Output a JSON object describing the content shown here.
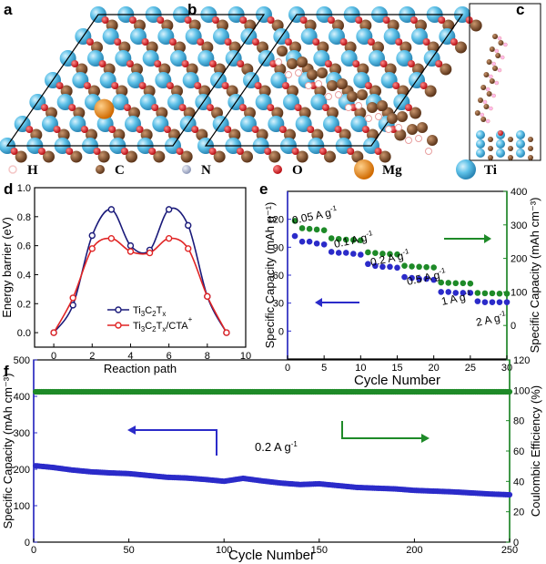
{
  "panels": {
    "a": "a",
    "b": "b",
    "c": "c",
    "d": "d",
    "e": "e",
    "f": "f"
  },
  "legend_atoms": [
    {
      "symbol": "H",
      "color": "#f4c6c6",
      "style": "ring"
    },
    {
      "symbol": "C",
      "color": "#7a4a2a",
      "style": "ball"
    },
    {
      "symbol": "N",
      "color": "#b8c0d8",
      "style": "ball"
    },
    {
      "symbol": "O",
      "color": "#e0262a",
      "style": "ball"
    },
    {
      "symbol": "Mg",
      "color": "#f08a1c",
      "style": "big"
    },
    {
      "symbol": "Ti",
      "color": "#5ec1e8",
      "style": "big"
    }
  ],
  "chart_data": [
    {
      "panel": "d",
      "type": "line",
      "xlabel": "Reaction path",
      "ylabel": "Energy barrier (eV)",
      "xlim": [
        -1,
        10
      ],
      "ylim": [
        -0.1,
        1.0
      ],
      "xticks": [
        0,
        2,
        4,
        6,
        8,
        10
      ],
      "yticks": [
        0.0,
        0.2,
        0.4,
        0.6,
        0.8,
        1.0
      ],
      "x": [
        0,
        1,
        2,
        3,
        4,
        5,
        6,
        7,
        8,
        9
      ],
      "series": [
        {
          "name": "Ti3C2Tx",
          "color": "#1a1a7a",
          "values": [
            0.0,
            0.19,
            0.67,
            0.85,
            0.6,
            0.57,
            0.85,
            0.74,
            0.25,
            0.0
          ]
        },
        {
          "name": "Ti3C2Tx/CTA+",
          "color": "#e02424",
          "values": [
            0.0,
            0.24,
            0.58,
            0.65,
            0.56,
            0.55,
            0.65,
            0.58,
            0.25,
            0.0
          ]
        }
      ]
    },
    {
      "panel": "e",
      "type": "scatter",
      "xlabel": "Cycle Number",
      "ylabel_left": "Specific Capacity (mAh g⁻¹)",
      "ylabel_right": "Specific Capacity (mAh cm⁻³)",
      "xlim": [
        0,
        30
      ],
      "ylim_left": [
        -30,
        150
      ],
      "ylim_right": [
        -100,
        400
      ],
      "xticks": [
        0,
        5,
        10,
        15,
        20,
        25,
        30
      ],
      "yticks_left": [
        0,
        30,
        60,
        90,
        120
      ],
      "yticks_right": [
        0,
        100,
        200,
        300,
        400
      ],
      "rate_labels": [
        "0.05 A g⁻¹",
        "0.1 A g⁻¹",
        "0.2 A g⁻¹",
        "0.5 A g⁻¹",
        "1 A g⁻¹",
        "2 A g⁻¹"
      ],
      "series": [
        {
          "name": "gravimetric",
          "color": "#2b2bc9",
          "axis": "left",
          "values": [
            102,
            96,
            96,
            94,
            93,
            85,
            84,
            84,
            83,
            82,
            72,
            70,
            69,
            69,
            68,
            58,
            57,
            56,
            56,
            55,
            42,
            42,
            41,
            41,
            41,
            32,
            31,
            31,
            31,
            31
          ]
        },
        {
          "name": "volumetric",
          "color": "#1e8a28",
          "axis": "right",
          "values": [
            312,
            290,
            288,
            286,
            284,
            260,
            258,
            256,
            255,
            254,
            218,
            216,
            214,
            213,
            212,
            178,
            176,
            175,
            174,
            173,
            128,
            127,
            126,
            126,
            125,
            97,
            96,
            96,
            95,
            95
          ]
        }
      ]
    },
    {
      "panel": "f",
      "type": "scatter",
      "xlabel": "Cycle Number",
      "ylabel_left": "Specific Capacity (mAh cm⁻³)",
      "ylabel_right": "Coulombic Efficiency (%)",
      "annotation": "0.2 A g⁻¹",
      "xlim": [
        0,
        250
      ],
      "ylim_left": [
        0,
        500
      ],
      "ylim_right": [
        0,
        120
      ],
      "xticks": [
        0,
        50,
        100,
        150,
        200,
        250
      ],
      "yticks_left": [
        0,
        100,
        200,
        300,
        400,
        500
      ],
      "yticks_right": [
        0,
        20,
        40,
        60,
        80,
        100,
        120
      ],
      "series": [
        {
          "name": "capacity",
          "color": "#2b2bc9",
          "axis": "left",
          "x": [
            0,
            10,
            20,
            30,
            40,
            50,
            60,
            70,
            80,
            90,
            100,
            110,
            120,
            130,
            140,
            150,
            160,
            170,
            180,
            190,
            200,
            210,
            220,
            230,
            240,
            250
          ],
          "values": [
            210,
            205,
            198,
            193,
            190,
            188,
            183,
            178,
            176,
            172,
            167,
            175,
            168,
            162,
            158,
            160,
            155,
            150,
            148,
            146,
            142,
            140,
            138,
            135,
            132,
            130
          ]
        },
        {
          "name": "coulombic efficiency",
          "color": "#1e8a28",
          "axis": "right",
          "x": [
            0,
            250
          ],
          "values": [
            99,
            99
          ]
        }
      ]
    }
  ]
}
